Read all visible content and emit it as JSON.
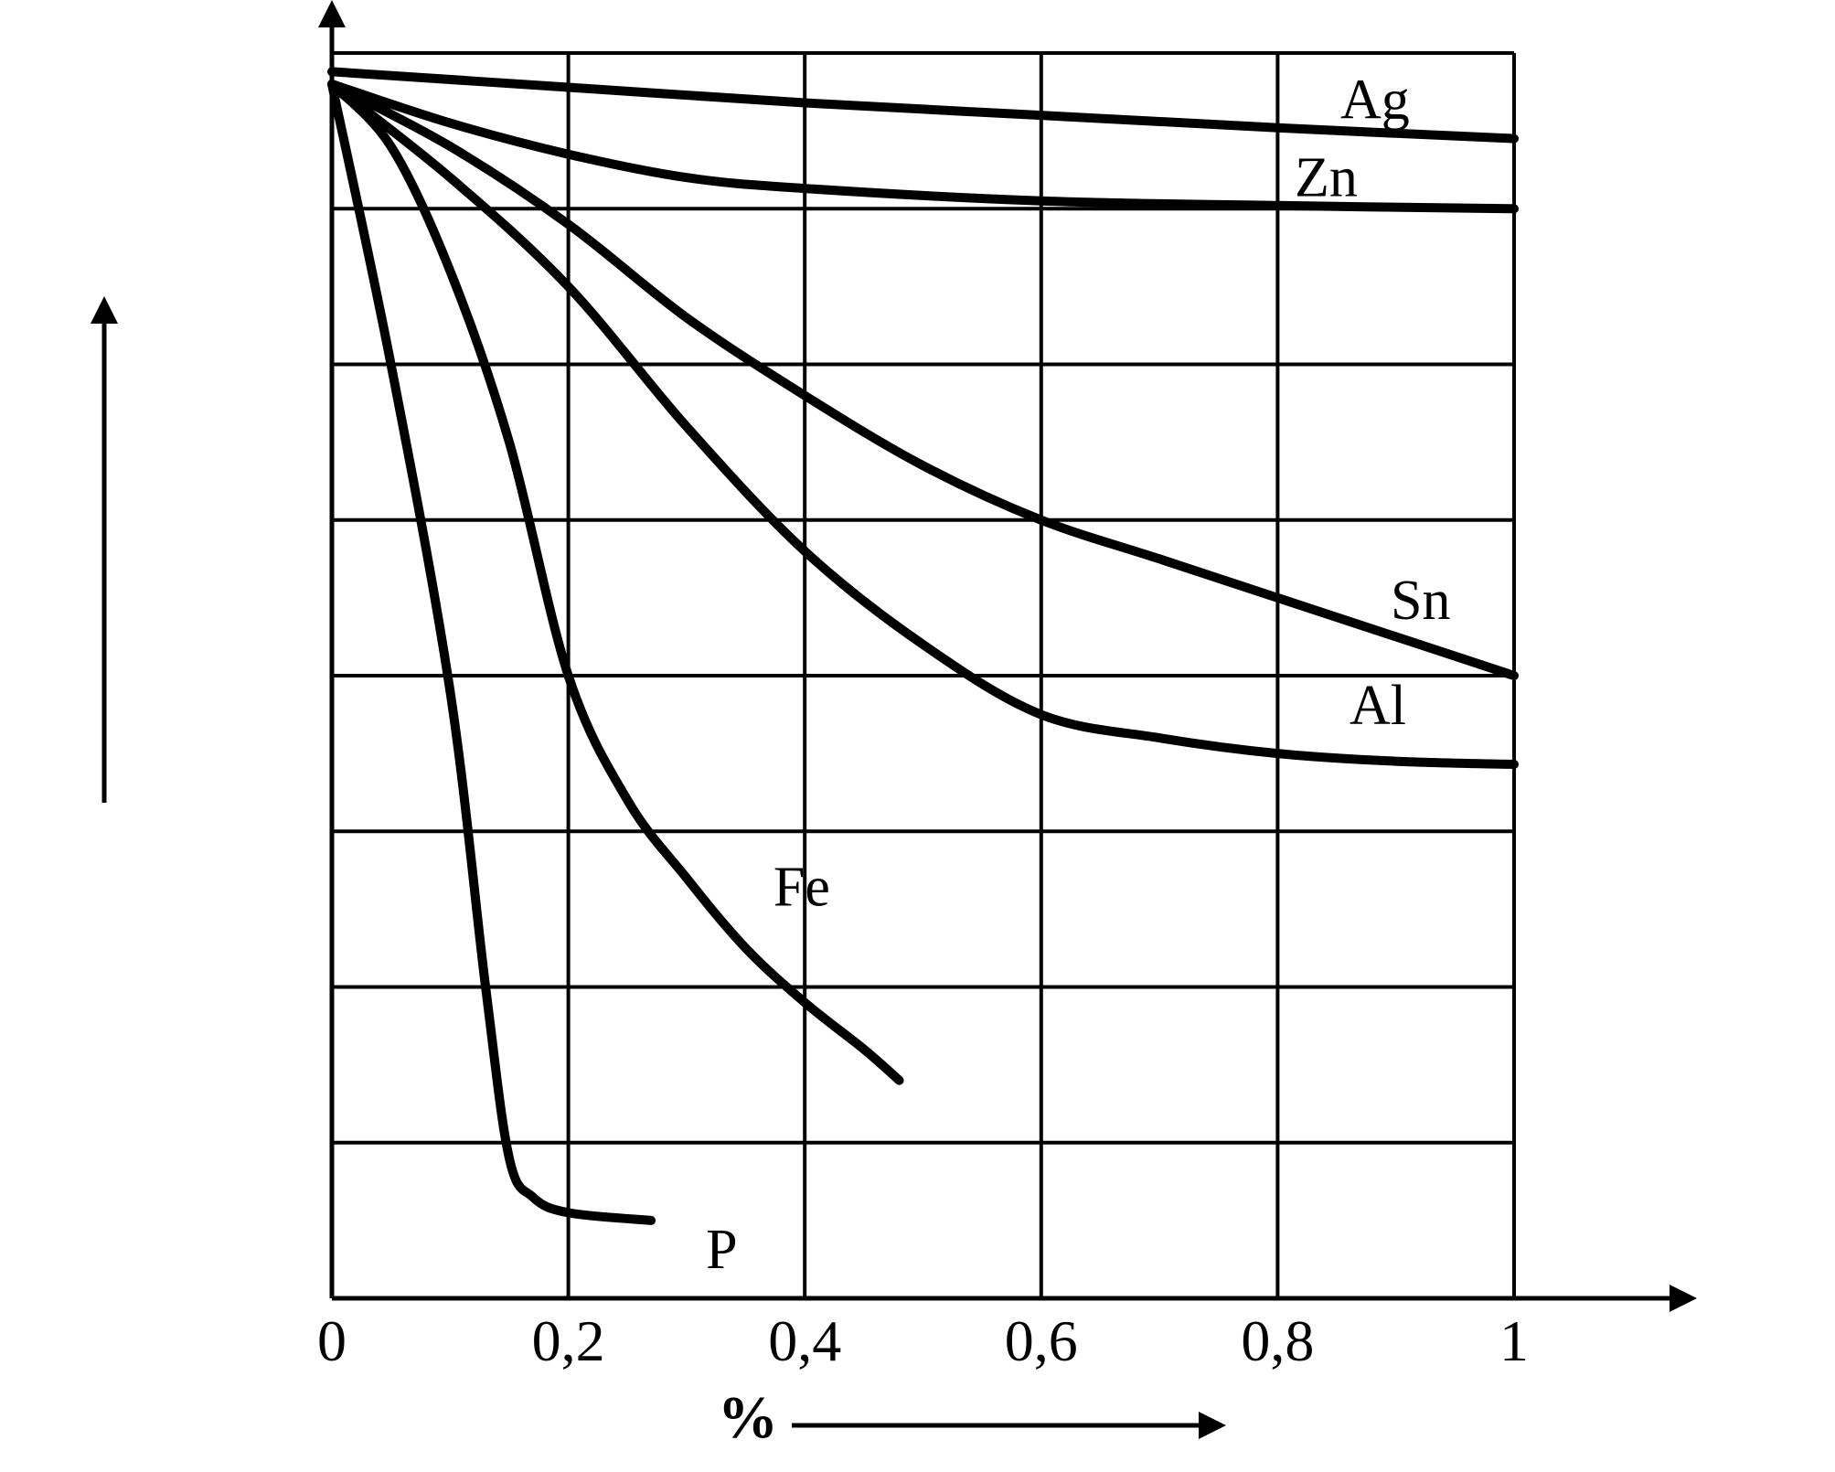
{
  "chart_data": {
    "type": "line",
    "title": "",
    "xlabel": "%",
    "ylabel": "",
    "xlim": [
      0,
      1
    ],
    "ylim": [
      0,
      8
    ],
    "x_ticks": [
      "0",
      "0,2",
      "0,4",
      "0,6",
      "0,8",
      "1"
    ],
    "x_tick_values": [
      0,
      0.2,
      0.4,
      0.6,
      0.8,
      1
    ],
    "grid": true,
    "y_gridlines": [
      1,
      2,
      3,
      4,
      5,
      6,
      7,
      8
    ],
    "colors": {
      "line": "#000000",
      "grid": "#000000",
      "background": "#ffffff"
    },
    "series": [
      {
        "name": "Ag",
        "x": [
          0,
          0.2,
          0.4,
          0.6,
          0.8,
          1.0
        ],
        "y": [
          7.88,
          7.78,
          7.68,
          7.6,
          7.52,
          7.45
        ]
      },
      {
        "name": "Zn",
        "x": [
          0,
          0.1,
          0.2,
          0.3,
          0.4,
          0.6,
          0.8,
          1.0
        ],
        "y": [
          7.8,
          7.55,
          7.35,
          7.2,
          7.13,
          7.05,
          7.02,
          7.0
        ]
      },
      {
        "name": "Sn",
        "x": [
          0,
          0.1,
          0.2,
          0.3,
          0.4,
          0.5,
          0.6,
          0.7,
          0.8,
          0.9,
          1.0
        ],
        "y": [
          7.8,
          7.4,
          6.9,
          6.3,
          5.8,
          5.35,
          5.0,
          4.75,
          4.5,
          4.25,
          4.0
        ]
      },
      {
        "name": "Al",
        "x": [
          0,
          0.1,
          0.2,
          0.3,
          0.4,
          0.5,
          0.6,
          0.7,
          0.8,
          0.9,
          1.0
        ],
        "y": [
          7.8,
          7.2,
          6.5,
          5.6,
          4.8,
          4.2,
          3.75,
          3.6,
          3.5,
          3.45,
          3.43
        ]
      },
      {
        "name": "Fe",
        "x": [
          0,
          0.05,
          0.1,
          0.15,
          0.2,
          0.25,
          0.3,
          0.35,
          0.4,
          0.45,
          0.48
        ],
        "y": [
          7.8,
          7.4,
          6.6,
          5.5,
          4.0,
          3.2,
          2.7,
          2.25,
          1.9,
          1.6,
          1.4
        ]
      },
      {
        "name": "P",
        "x": [
          0,
          0.05,
          0.1,
          0.13,
          0.15,
          0.17,
          0.2,
          0.27
        ],
        "y": [
          7.8,
          6.0,
          3.9,
          2.0,
          0.9,
          0.65,
          0.55,
          0.5
        ]
      }
    ],
    "label_positions_note": "labels placed near curve ends"
  }
}
